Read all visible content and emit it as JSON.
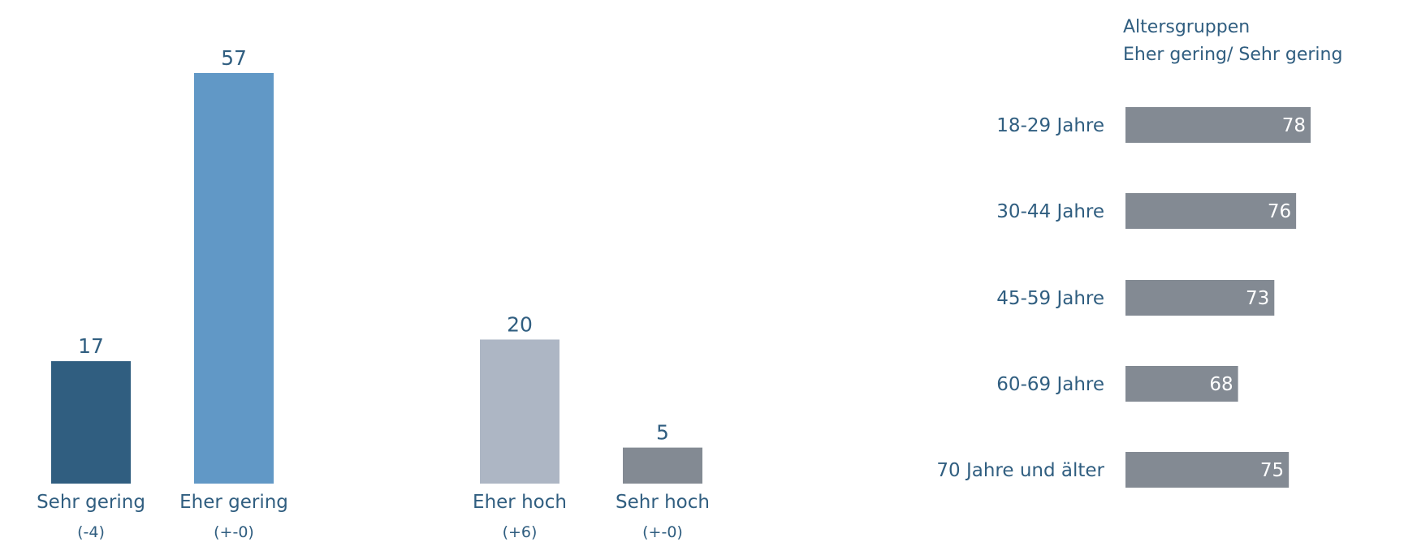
{
  "chart_data": [
    {
      "type": "bar",
      "orientation": "vertical",
      "categories": [
        "Sehr gering",
        "Eher gering",
        "Eher hoch",
        "Sehr hoch"
      ],
      "changes": [
        "(-4)",
        "(+-0)",
        "(+6)",
        "(+-0)"
      ],
      "values": [
        17,
        57,
        20,
        5
      ],
      "colors": [
        "#305e80",
        "#6198c6",
        "#adb6c4",
        "#838a93"
      ],
      "ylim": [
        0,
        57
      ]
    },
    {
      "type": "bar",
      "orientation": "horizontal",
      "title_lines": [
        "Altersgruppen",
        "Eher gering/ Sehr gering"
      ],
      "categories": [
        "18-29 Jahre",
        "30-44 Jahre",
        "45-59 Jahre",
        "60-69 Jahre",
        "70 Jahre und älter"
      ],
      "values": [
        78,
        76,
        73,
        68,
        75
      ],
      "color": "#838a93",
      "xlim": [
        62,
        78
      ]
    }
  ],
  "text_color": "#305e80",
  "value_label_inside_color": "#ffffff"
}
